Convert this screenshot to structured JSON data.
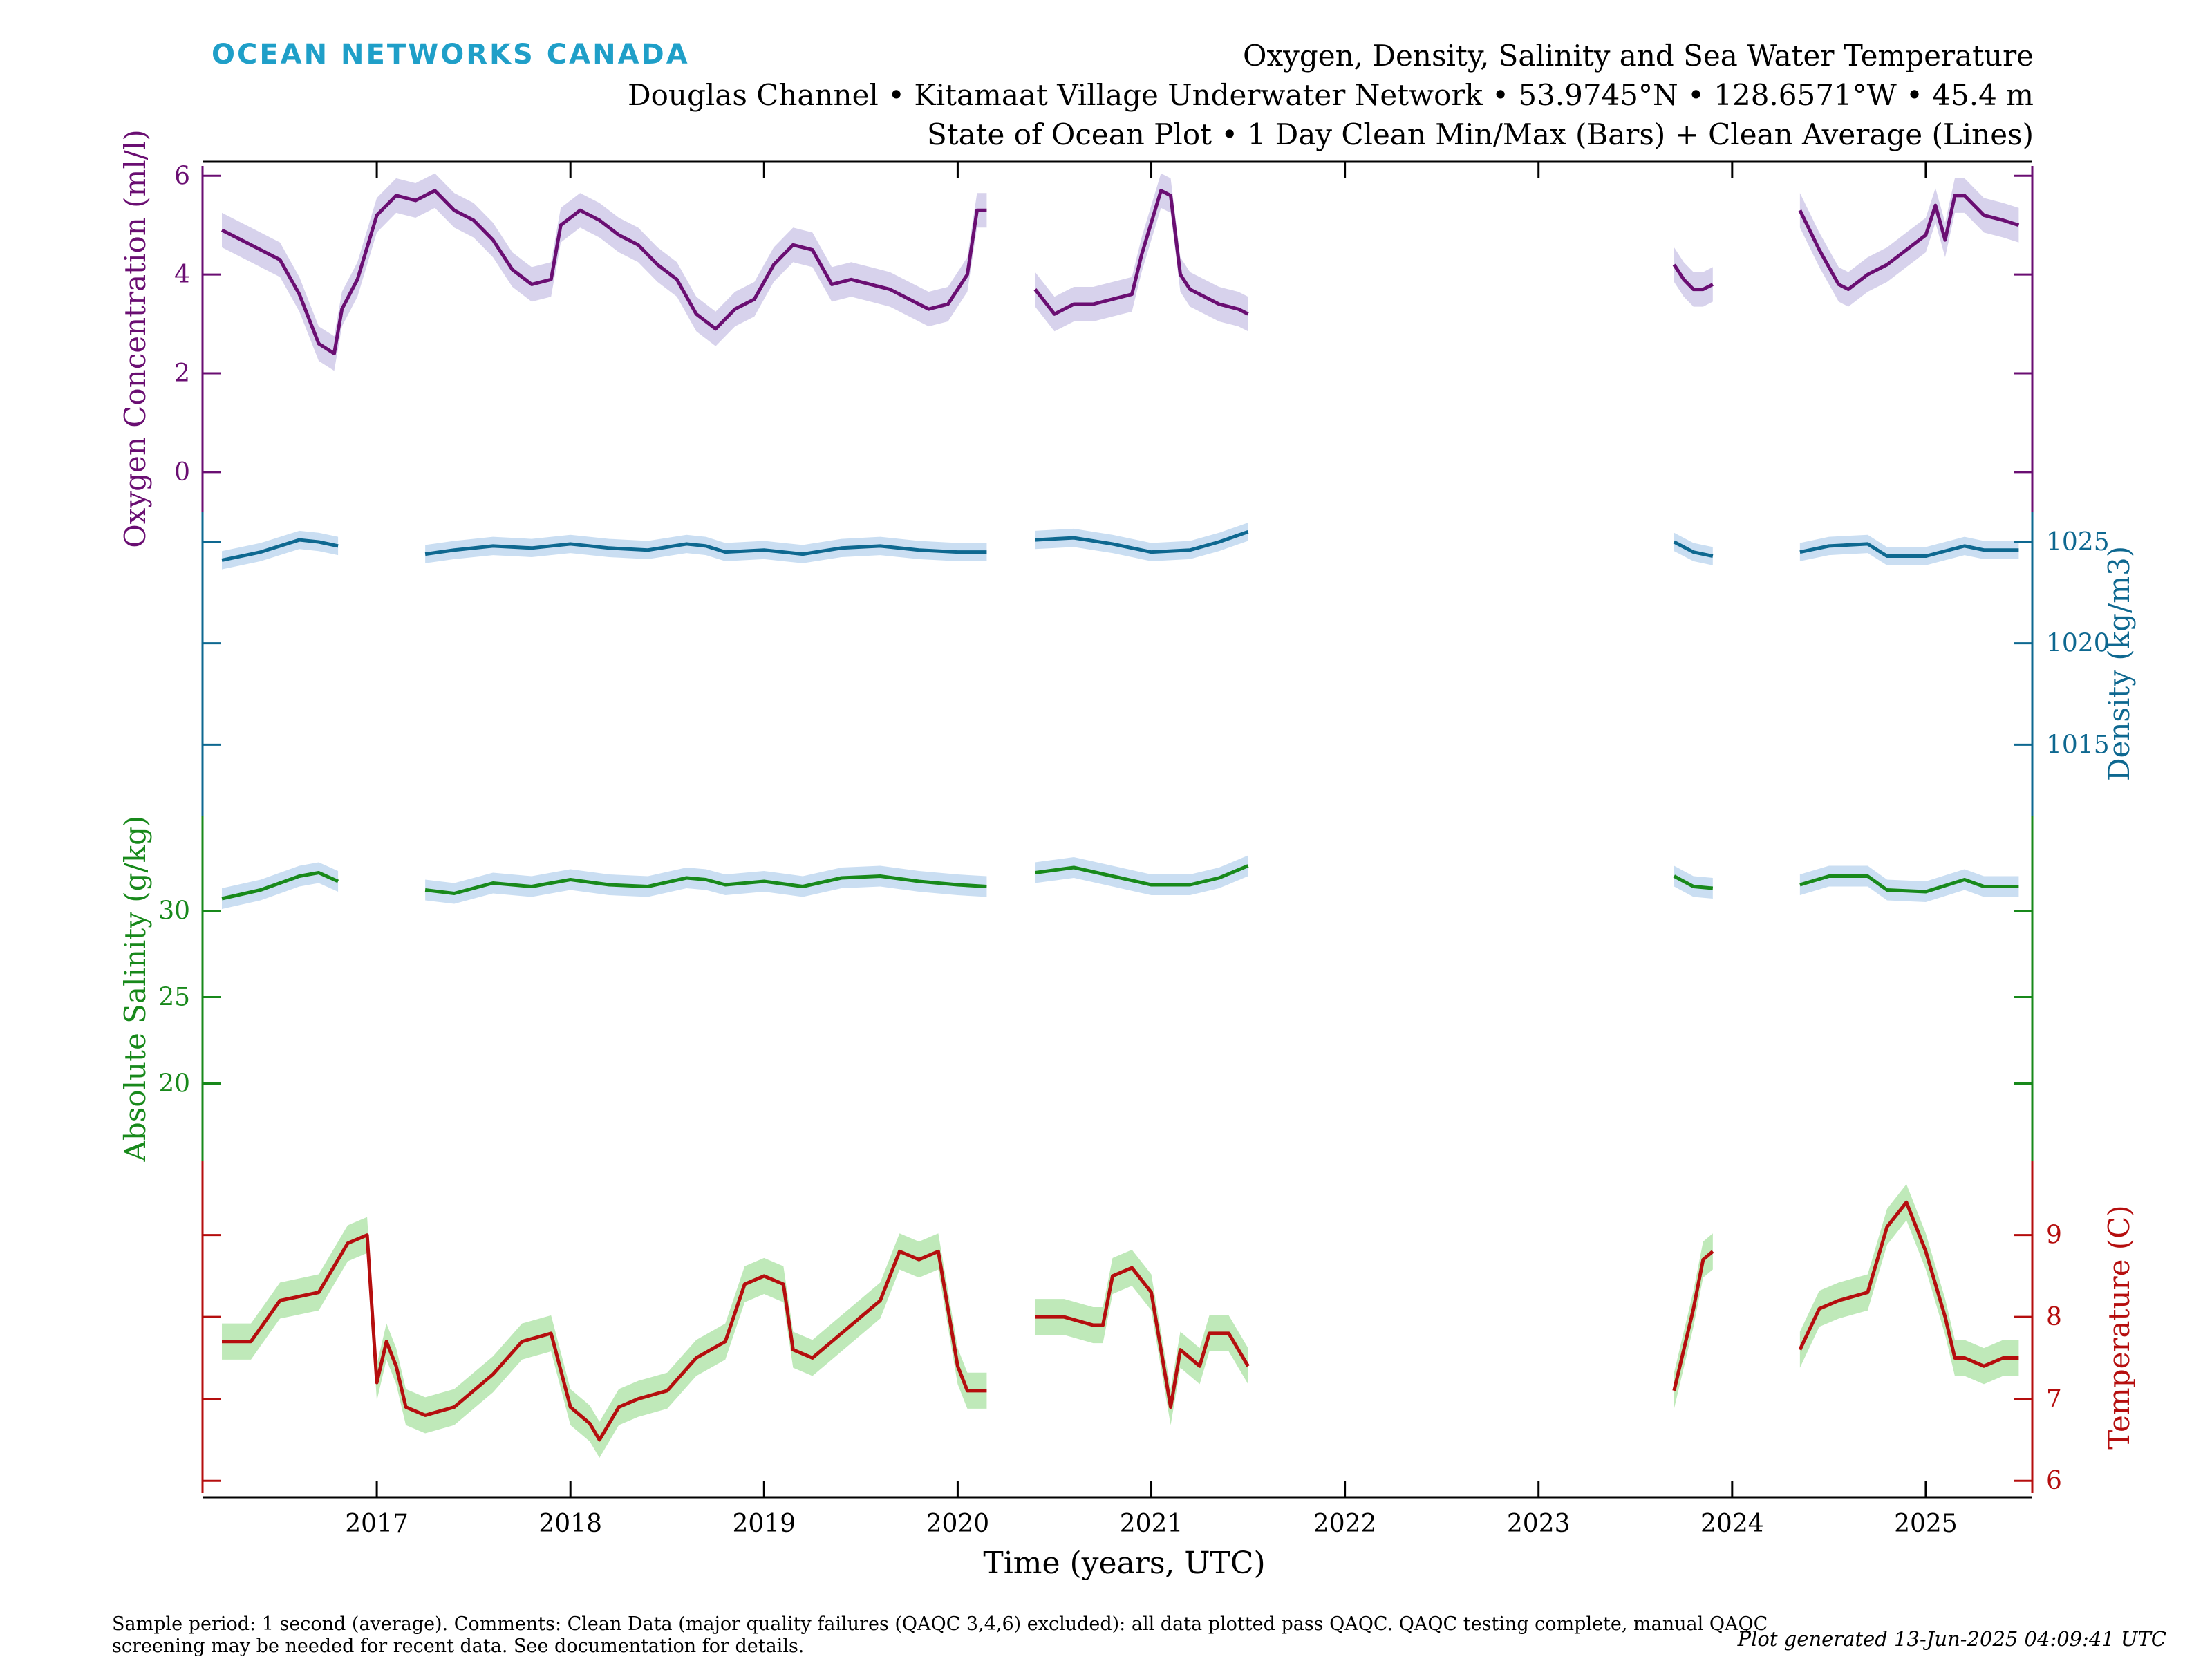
{
  "header": {
    "brand": "OCEAN NETWORKS CANADA",
    "title_line1": "Oxygen, Density, Salinity and Sea Water Temperature",
    "title_line2": "Douglas Channel • Kitamaat Village Underwater Network • 53.9745°N • 128.6571°W • 45.4 m",
    "title_line3": "State of Ocean Plot • 1 Day Clean Min/Max (Bars) + Clean Average (Lines)"
  },
  "footer": {
    "note": "Sample period: 1 second (average). Comments: Clean Data (major quality failures (QAQC 3,4,6) excluded): all data plotted pass QAQC. QAQC testing complete, manual QAQC screening may be needed for recent data. See documentation for details.",
    "generated": "Plot generated 13-Jun-2025 04:09:41 UTC"
  },
  "chart_data": {
    "type": "line",
    "xlabel": "Time (years, UTC)",
    "xlim": [
      2016.1,
      2025.55
    ],
    "xticks": [
      "2017",
      "2018",
      "2019",
      "2020",
      "2021",
      "2022",
      "2023",
      "2024",
      "2025"
    ],
    "grid": false,
    "colors": {
      "oxygen": "#6a0e72",
      "oxygen_band": "#c9c3e6",
      "density": "#0e6890",
      "density_band": "#b8d3ee",
      "salinity": "#18891b",
      "salinity_band": "#b8d3ee",
      "temperature": "#b50e0e",
      "temperature_band": "#a9e1a2"
    },
    "series": [
      {
        "name": "Oxygen Concentration (ml/l)",
        "key": "oxygen",
        "axis": "left",
        "ylim": [
          -0.8,
          6.2
        ],
        "yticks": [
          "0",
          "2",
          "4",
          "6"
        ],
        "x": [
          2016.2,
          2016.3,
          2016.4,
          2016.5,
          2016.6,
          2016.7,
          2016.78,
          2016.82,
          2016.9,
          2017.0,
          2017.1,
          2017.2,
          2017.3,
          2017.4,
          2017.5,
          2017.6,
          2017.7,
          2017.8,
          2017.9,
          2017.95,
          2018.05,
          2018.15,
          2018.25,
          2018.35,
          2018.45,
          2018.55,
          2018.65,
          2018.75,
          2018.85,
          2018.95,
          2019.05,
          2019.15,
          2019.25,
          2019.35,
          2019.45,
          2019.55,
          2019.65,
          2019.75,
          2019.85,
          2019.95,
          2020.05,
          2020.1,
          2020.15,
          null,
          2020.4,
          2020.5,
          2020.6,
          2020.7,
          2020.8,
          2020.9,
          2020.95,
          2021.05,
          2021.1,
          2021.15,
          2021.2,
          2021.3,
          2021.35,
          2021.45,
          2021.5,
          null,
          2023.7,
          2023.75,
          2023.8,
          2023.85,
          2023.9,
          null,
          2024.35,
          2024.45,
          2024.55,
          2024.6,
          2024.7,
          2024.8,
          2024.9,
          2025.0,
          2025.05,
          2025.1,
          2025.15,
          2025.2,
          2025.3,
          2025.4,
          2025.48
        ],
        "values": [
          4.9,
          4.7,
          4.5,
          4.3,
          3.6,
          2.6,
          2.4,
          3.3,
          3.9,
          5.2,
          5.6,
          5.5,
          5.7,
          5.3,
          5.1,
          4.7,
          4.1,
          3.8,
          3.9,
          5.0,
          5.3,
          5.1,
          4.8,
          4.6,
          4.2,
          3.9,
          3.2,
          2.9,
          3.3,
          3.5,
          4.2,
          4.6,
          4.5,
          3.8,
          3.9,
          3.8,
          3.7,
          3.5,
          3.3,
          3.4,
          4.0,
          5.3,
          5.3,
          null,
          3.7,
          3.2,
          3.4,
          3.4,
          3.5,
          3.6,
          4.4,
          5.7,
          5.6,
          4.0,
          3.7,
          3.5,
          3.4,
          3.3,
          3.2,
          null,
          4.2,
          3.9,
          3.7,
          3.7,
          3.8,
          null,
          5.3,
          4.5,
          3.8,
          3.7,
          4.0,
          4.2,
          4.5,
          4.8,
          5.4,
          4.7,
          5.6,
          5.6,
          5.2,
          5.1,
          5.0
        ]
      },
      {
        "name": "Density (kg/m3)",
        "key": "density",
        "axis": "right",
        "ylim": [
          1011.5,
          1026.5
        ],
        "yticks": [
          "1015",
          "1020",
          "1025"
        ],
        "x": [
          2016.2,
          2016.4,
          2016.6,
          2016.7,
          2016.8,
          null,
          2017.25,
          2017.4,
          2017.6,
          2017.8,
          2018.0,
          2018.2,
          2018.4,
          2018.6,
          2018.7,
          2018.8,
          2019.0,
          2019.2,
          2019.4,
          2019.6,
          2019.8,
          2020.0,
          2020.15,
          null,
          2020.4,
          2020.6,
          2020.8,
          2021.0,
          2021.2,
          2021.35,
          2021.5,
          null,
          2023.7,
          2023.8,
          2023.9,
          null,
          2024.35,
          2024.5,
          2024.7,
          2024.8,
          2025.0,
          2025.2,
          2025.3,
          2025.48
        ],
        "values": [
          1024.1,
          1024.5,
          1025.1,
          1025.0,
          1024.8,
          null,
          1024.4,
          1024.6,
          1024.8,
          1024.7,
          1024.9,
          1024.7,
          1024.6,
          1024.9,
          1024.8,
          1024.5,
          1024.6,
          1024.4,
          1024.7,
          1024.8,
          1024.6,
          1024.5,
          1024.5,
          null,
          1025.1,
          1025.2,
          1024.9,
          1024.5,
          1024.6,
          1025.0,
          1025.5,
          null,
          1025.0,
          1024.5,
          1024.3,
          null,
          1024.5,
          1024.8,
          1024.9,
          1024.3,
          1024.3,
          1024.8,
          1024.6,
          1024.6
        ]
      },
      {
        "name": "Absolute Salinity (g/kg)",
        "key": "salinity",
        "axis": "left",
        "ylim": [
          15.5,
          35.5
        ],
        "yticks": [
          "20",
          "25",
          "30"
        ],
        "x": [
          2016.2,
          2016.4,
          2016.6,
          2016.7,
          2016.8,
          null,
          2017.25,
          2017.4,
          2017.6,
          2017.8,
          2018.0,
          2018.2,
          2018.4,
          2018.6,
          2018.7,
          2018.8,
          2019.0,
          2019.2,
          2019.4,
          2019.6,
          2019.8,
          2020.0,
          2020.15,
          null,
          2020.4,
          2020.6,
          2020.8,
          2021.0,
          2021.2,
          2021.35,
          2021.5,
          null,
          2023.7,
          2023.8,
          2023.9,
          null,
          2024.35,
          2024.5,
          2024.7,
          2024.8,
          2025.0,
          2025.2,
          2025.3,
          2025.48
        ],
        "values": [
          30.7,
          31.2,
          32.0,
          32.2,
          31.7,
          null,
          31.2,
          31.0,
          31.6,
          31.4,
          31.8,
          31.5,
          31.4,
          31.9,
          31.8,
          31.5,
          31.7,
          31.4,
          31.9,
          32.0,
          31.7,
          31.5,
          31.4,
          null,
          32.2,
          32.5,
          32.0,
          31.5,
          31.5,
          31.9,
          32.6,
          null,
          32.0,
          31.4,
          31.3,
          null,
          31.5,
          32.0,
          32.0,
          31.2,
          31.1,
          31.8,
          31.4,
          31.4
        ]
      },
      {
        "name": "Temperature (C)",
        "key": "temperature",
        "axis": "right",
        "ylim": [
          5.85,
          9.9
        ],
        "yticks": [
          "6",
          "7",
          "8",
          "9"
        ],
        "x": [
          2016.2,
          2016.35,
          2016.5,
          2016.7,
          2016.85,
          2016.95,
          2017.0,
          2017.05,
          2017.1,
          2017.15,
          2017.25,
          2017.4,
          2017.6,
          2017.75,
          2017.9,
          2018.0,
          2018.1,
          2018.15,
          2018.25,
          2018.35,
          2018.5,
          2018.65,
          2018.8,
          2018.9,
          2019.0,
          2019.1,
          2019.15,
          2019.25,
          2019.35,
          2019.5,
          2019.6,
          2019.7,
          2019.8,
          2019.9,
          2020.0,
          2020.05,
          2020.1,
          2020.15,
          null,
          2020.4,
          2020.55,
          2020.7,
          2020.75,
          2020.8,
          2020.9,
          2021.0,
          2021.1,
          2021.15,
          2021.25,
          2021.3,
          2021.4,
          2021.5,
          null,
          2023.7,
          2023.75,
          2023.8,
          2023.85,
          2023.9,
          null,
          2024.35,
          2024.45,
          2024.55,
          2024.7,
          2024.8,
          2024.9,
          2025.0,
          2025.1,
          2025.15,
          2025.2,
          2025.3,
          2025.4,
          2025.48
        ],
        "values": [
          7.7,
          7.7,
          8.2,
          8.3,
          8.9,
          9.0,
          7.2,
          7.7,
          7.4,
          6.9,
          6.8,
          6.9,
          7.3,
          7.7,
          7.8,
          6.9,
          6.7,
          6.5,
          6.9,
          7.0,
          7.1,
          7.5,
          7.7,
          8.4,
          8.5,
          8.4,
          7.6,
          7.5,
          7.7,
          8.0,
          8.2,
          8.8,
          8.7,
          8.8,
          7.4,
          7.1,
          7.1,
          7.1,
          null,
          8.0,
          8.0,
          7.9,
          7.9,
          8.5,
          8.6,
          8.3,
          6.9,
          7.6,
          7.4,
          7.8,
          7.8,
          7.4,
          null,
          7.1,
          7.6,
          8.1,
          8.7,
          8.8,
          null,
          7.6,
          8.1,
          8.2,
          8.3,
          9.1,
          9.4,
          8.8,
          8.0,
          7.5,
          7.5,
          7.4,
          7.5,
          7.5
        ]
      }
    ]
  }
}
